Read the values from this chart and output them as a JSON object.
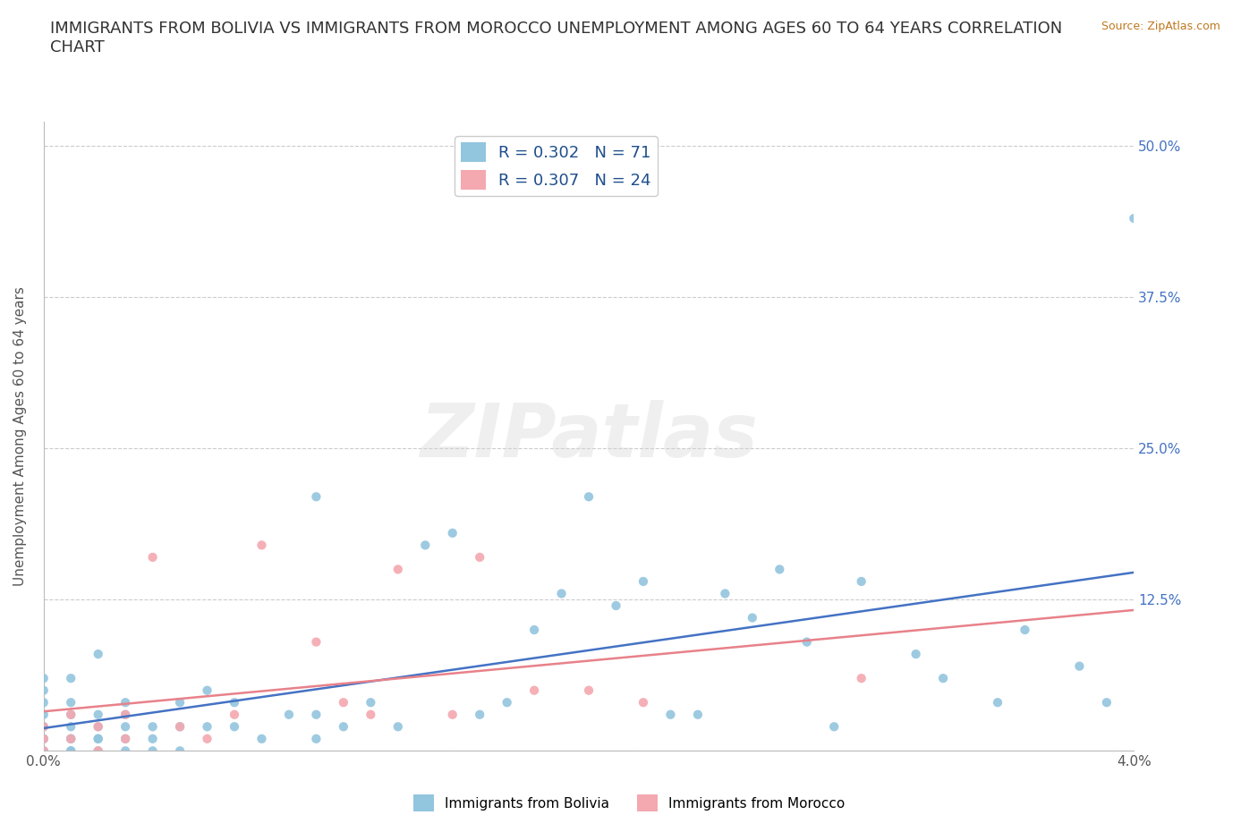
{
  "title": "IMMIGRANTS FROM BOLIVIA VS IMMIGRANTS FROM MOROCCO UNEMPLOYMENT AMONG AGES 60 TO 64 YEARS CORRELATION\nCHART",
  "source": "Source: ZipAtlas.com",
  "ylabel": "Unemployment Among Ages 60 to 64 years",
  "xlim": [
    0.0,
    0.04
  ],
  "ylim": [
    0.0,
    0.52
  ],
  "xticks": [
    0.0,
    0.01,
    0.02,
    0.03,
    0.04
  ],
  "xtick_labels": [
    "0.0%",
    "",
    "",
    "",
    "4.0%"
  ],
  "yticks": [
    0.0,
    0.125,
    0.25,
    0.375,
    0.5
  ],
  "ytick_labels_right": [
    "",
    "12.5%",
    "25.0%",
    "37.5%",
    "50.0%"
  ],
  "bolivia_color": "#92C5DE",
  "morocco_color": "#F4A8B0",
  "trendline_bolivia_color": "#4472C4",
  "trendline_morocco_color": "#E8818A",
  "legend_text_color": "#1F4E8C",
  "bolivia_R": 0.302,
  "bolivia_N": 71,
  "morocco_R": 0.307,
  "morocco_N": 24,
  "grid_color": "#CCCCCC",
  "background_color": "#FFFFFF",
  "title_fontsize": 13,
  "axis_label_fontsize": 11,
  "tick_fontsize": 11,
  "legend_fontsize": 13,
  "bolivia_x": [
    0.0,
    0.0,
    0.0,
    0.0,
    0.0,
    0.0,
    0.0,
    0.0,
    0.0,
    0.0,
    0.001,
    0.001,
    0.001,
    0.001,
    0.001,
    0.001,
    0.001,
    0.001,
    0.002,
    0.002,
    0.002,
    0.002,
    0.002,
    0.002,
    0.003,
    0.003,
    0.003,
    0.003,
    0.003,
    0.004,
    0.004,
    0.004,
    0.005,
    0.005,
    0.005,
    0.006,
    0.006,
    0.007,
    0.007,
    0.008,
    0.009,
    0.01,
    0.01,
    0.01,
    0.011,
    0.012,
    0.013,
    0.014,
    0.015,
    0.016,
    0.017,
    0.018,
    0.019,
    0.02,
    0.021,
    0.022,
    0.023,
    0.024,
    0.025,
    0.026,
    0.027,
    0.028,
    0.029,
    0.03,
    0.032,
    0.033,
    0.035,
    0.036,
    0.038,
    0.039,
    0.04
  ],
  "bolivia_y": [
    0.0,
    0.0,
    0.01,
    0.01,
    0.02,
    0.02,
    0.03,
    0.04,
    0.05,
    0.06,
    0.0,
    0.0,
    0.01,
    0.01,
    0.02,
    0.03,
    0.04,
    0.06,
    0.0,
    0.01,
    0.01,
    0.02,
    0.03,
    0.08,
    0.0,
    0.01,
    0.02,
    0.03,
    0.04,
    0.0,
    0.01,
    0.02,
    0.0,
    0.02,
    0.04,
    0.02,
    0.05,
    0.02,
    0.04,
    0.01,
    0.03,
    0.01,
    0.03,
    0.21,
    0.02,
    0.04,
    0.02,
    0.17,
    0.18,
    0.03,
    0.04,
    0.1,
    0.13,
    0.21,
    0.12,
    0.14,
    0.03,
    0.03,
    0.13,
    0.11,
    0.15,
    0.09,
    0.02,
    0.14,
    0.08,
    0.06,
    0.04,
    0.1,
    0.07,
    0.04,
    0.44
  ],
  "morocco_x": [
    0.0,
    0.0,
    0.0,
    0.001,
    0.001,
    0.002,
    0.002,
    0.003,
    0.003,
    0.004,
    0.005,
    0.006,
    0.007,
    0.008,
    0.01,
    0.011,
    0.012,
    0.013,
    0.015,
    0.016,
    0.018,
    0.02,
    0.022,
    0.03
  ],
  "morocco_y": [
    0.0,
    0.01,
    0.02,
    0.01,
    0.03,
    0.0,
    0.02,
    0.01,
    0.03,
    0.16,
    0.02,
    0.01,
    0.03,
    0.17,
    0.09,
    0.04,
    0.03,
    0.15,
    0.03,
    0.16,
    0.05,
    0.05,
    0.04,
    0.06
  ]
}
